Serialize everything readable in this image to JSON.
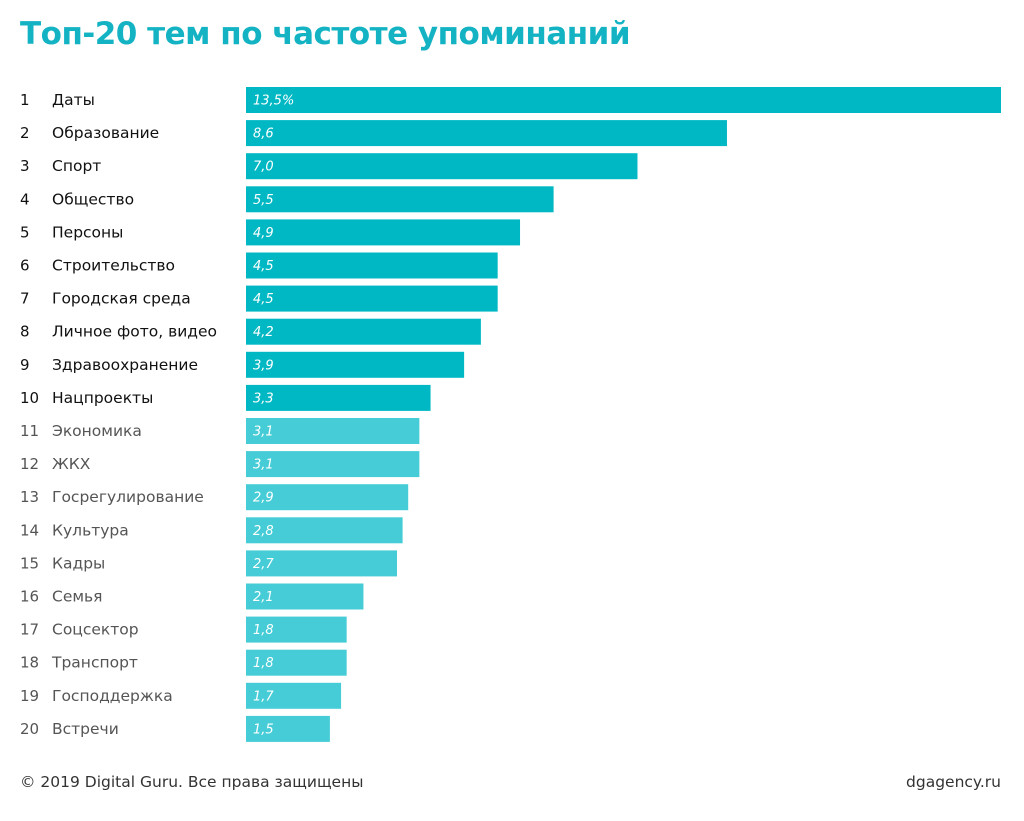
{
  "chart_data": {
    "type": "bar",
    "orientation": "horizontal",
    "title": "Топ-20 тем по частоте упоминаний",
    "xlim": [
      0,
      13.5
    ],
    "grid": false,
    "colors": {
      "top10": "#00b8c4",
      "rest": "#45ccd6"
    },
    "categories": [
      "Даты",
      "Образование",
      "Спорт",
      "Общество",
      "Персоны",
      "Строительство",
      "Городская среда",
      "Личное фото, видео",
      "Здравоохранение",
      "Нацпроекты",
      "Экономика",
      "ЖКХ",
      "Госрегулирование",
      "Культура",
      "Кадры",
      "Семья",
      "Соцсектор",
      "Транспорт",
      "Господдержка",
      "Встречи"
    ],
    "ranks": [
      "1",
      "2",
      "3",
      "4",
      "5",
      "6",
      "7",
      "8",
      "9",
      "10",
      "11",
      "12",
      "13",
      "14",
      "15",
      "16",
      "17",
      "18",
      "19",
      "20"
    ],
    "values": [
      13.5,
      8.6,
      7.0,
      5.5,
      4.9,
      4.5,
      4.5,
      4.2,
      3.9,
      3.3,
      3.1,
      3.1,
      2.9,
      2.8,
      2.7,
      2.1,
      1.8,
      1.8,
      1.7,
      1.5
    ],
    "value_labels": [
      "13,5%",
      "8,6",
      "7,0",
      "5,5",
      "4,9",
      "4,5",
      "4,5",
      "4,2",
      "3,9",
      "3,3",
      "3,1",
      "3,1",
      "2,9",
      "2,8",
      "2,7",
      "2,1",
      "1,8",
      "1,8",
      "1,7",
      "1,5"
    ]
  },
  "footer": {
    "copyright": "© 2019 Digital Guru. Все права защищены",
    "site": "dgagency.ru"
  }
}
